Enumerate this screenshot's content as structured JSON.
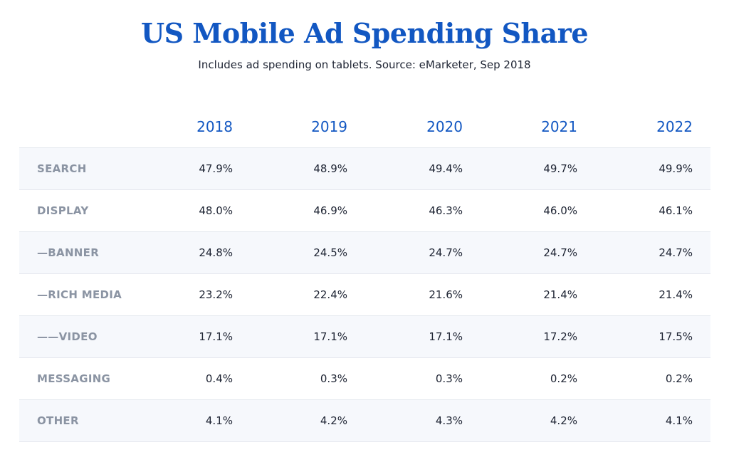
{
  "chart_data": {
    "type": "table",
    "title": "US Mobile Ad Spending Share",
    "subtitle": "Includes ad spending on tablets. Source: eMarketer, Sep 2018",
    "columns": [
      "2018",
      "2019",
      "2020",
      "2021",
      "2022"
    ],
    "rows": [
      {
        "label": "SEARCH",
        "values": [
          "47.9%",
          "48.9%",
          "49.4%",
          "49.7%",
          "49.9%"
        ]
      },
      {
        "label": "DISPLAY",
        "values": [
          "48.0%",
          "46.9%",
          "46.3%",
          "46.0%",
          "46.1%"
        ]
      },
      {
        "label": "—BANNER",
        "values": [
          "24.8%",
          "24.5%",
          "24.7%",
          "24.7%",
          "24.7%"
        ]
      },
      {
        "label": "—RICH MEDIA",
        "values": [
          "23.2%",
          "22.4%",
          "21.6%",
          "21.4%",
          "21.4%"
        ]
      },
      {
        "label": "——VIDEO",
        "values": [
          "17.1%",
          "17.1%",
          "17.1%",
          "17.2%",
          "17.5%"
        ]
      },
      {
        "label": "MESSAGING",
        "values": [
          "0.4%",
          "0.3%",
          "0.3%",
          "0.2%",
          "0.2%"
        ]
      },
      {
        "label": "OTHER",
        "values": [
          "4.1%",
          "4.2%",
          "4.3%",
          "4.2%",
          "4.1%"
        ]
      }
    ]
  },
  "colors": {
    "title": "#1257c2",
    "year_header": "#1257c2",
    "row_label": "#8b94a3",
    "value_text": "#1e2433",
    "shaded_row": "#f6f8fc",
    "divider": "#e6e9ef"
  }
}
